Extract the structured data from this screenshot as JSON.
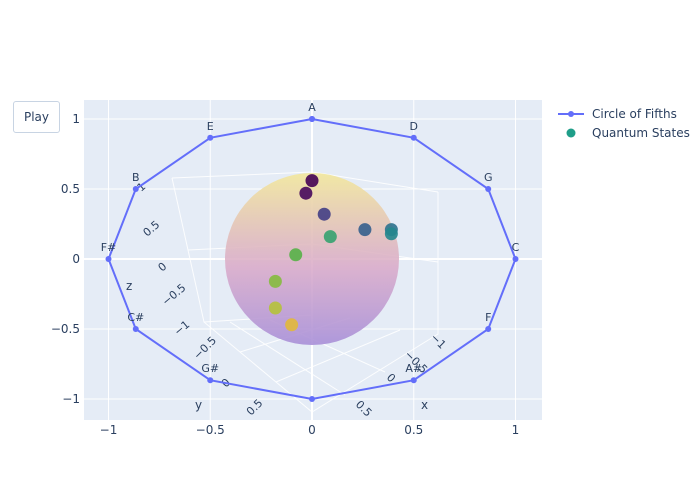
{
  "controls": {
    "play_label": "Play"
  },
  "colors": {
    "plot_bg": "#e5ecf6",
    "grid": "#ffffff",
    "text": "#2a3f5f",
    "circle_line": "#636efa",
    "quantum_marker": "#1f9e89",
    "sphere_top": "#f2e8a0",
    "sphere_bottom": "#a88fd8"
  },
  "chart_data": {
    "type": "line",
    "xlim": [
      -1.1,
      1.1
    ],
    "ylim": [
      -1.15,
      1.15
    ],
    "x_ticks": [
      -1,
      -0.5,
      0,
      0.5,
      1
    ],
    "y_ticks": [
      -1,
      -0.5,
      0,
      0.5,
      1
    ],
    "x_tick_labels": [
      "−1",
      "−0.5",
      "0",
      "0.5",
      "1"
    ],
    "y_tick_labels": [
      "−1",
      "−0.5",
      "0",
      "0.5",
      "1"
    ],
    "grid": true,
    "legend_position": "top-right",
    "series": [
      {
        "name": "Circle of Fifths",
        "mode": "lines+markers",
        "points": [
          {
            "x": 0,
            "y": 1,
            "label": "A"
          },
          {
            "x": 0.5,
            "y": 0.866,
            "label": "D"
          },
          {
            "x": 0.866,
            "y": 0.5,
            "label": "G"
          },
          {
            "x": 1,
            "y": 0,
            "label": "C"
          },
          {
            "x": 0.866,
            "y": -0.5,
            "label": "F"
          },
          {
            "x": 0.5,
            "y": -0.866,
            "label": "A#"
          },
          {
            "x": 0,
            "y": -1,
            "label": ""
          },
          {
            "x": -0.5,
            "y": -0.866,
            "label": "G#"
          },
          {
            "x": -0.866,
            "y": -0.5,
            "label": "C#"
          },
          {
            "x": -1,
            "y": 0,
            "label": "F#"
          },
          {
            "x": -0.866,
            "y": 0.5,
            "label": "B"
          },
          {
            "x": -0.5,
            "y": 0.866,
            "label": "E"
          },
          {
            "x": 0,
            "y": 1,
            "label": ""
          }
        ]
      },
      {
        "name": "Quantum States",
        "mode": "markers",
        "points": [
          {
            "x": 0.0,
            "y": 0.56,
            "color": "#440154"
          },
          {
            "x": -0.03,
            "y": 0.47,
            "color": "#46085c"
          },
          {
            "x": 0.06,
            "y": 0.32,
            "color": "#433e85"
          },
          {
            "x": 0.26,
            "y": 0.21,
            "color": "#355f8d"
          },
          {
            "x": 0.39,
            "y": 0.21,
            "color": "#2c728e"
          },
          {
            "x": 0.39,
            "y": 0.18,
            "color": "#24878e"
          },
          {
            "x": 0.09,
            "y": 0.16,
            "color": "#35a270"
          },
          {
            "x": -0.08,
            "y": 0.03,
            "color": "#57b147"
          },
          {
            "x": -0.18,
            "y": -0.16,
            "color": "#85bb3e"
          },
          {
            "x": -0.18,
            "y": -0.35,
            "color": "#b5c23a"
          },
          {
            "x": -0.1,
            "y": -0.47,
            "color": "#e2b83a"
          }
        ]
      }
    ],
    "scene_axes": {
      "x_title": "x",
      "y_title": "y",
      "z_title": "z",
      "x_ticks": [
        "−1",
        "−0.5",
        "0",
        "0.5"
      ],
      "y_ticks": [
        "−0.5",
        "0",
        "0.5"
      ],
      "z_ticks": [
        "1",
        "0.5",
        "0",
        "−0.5",
        "−1"
      ]
    }
  }
}
